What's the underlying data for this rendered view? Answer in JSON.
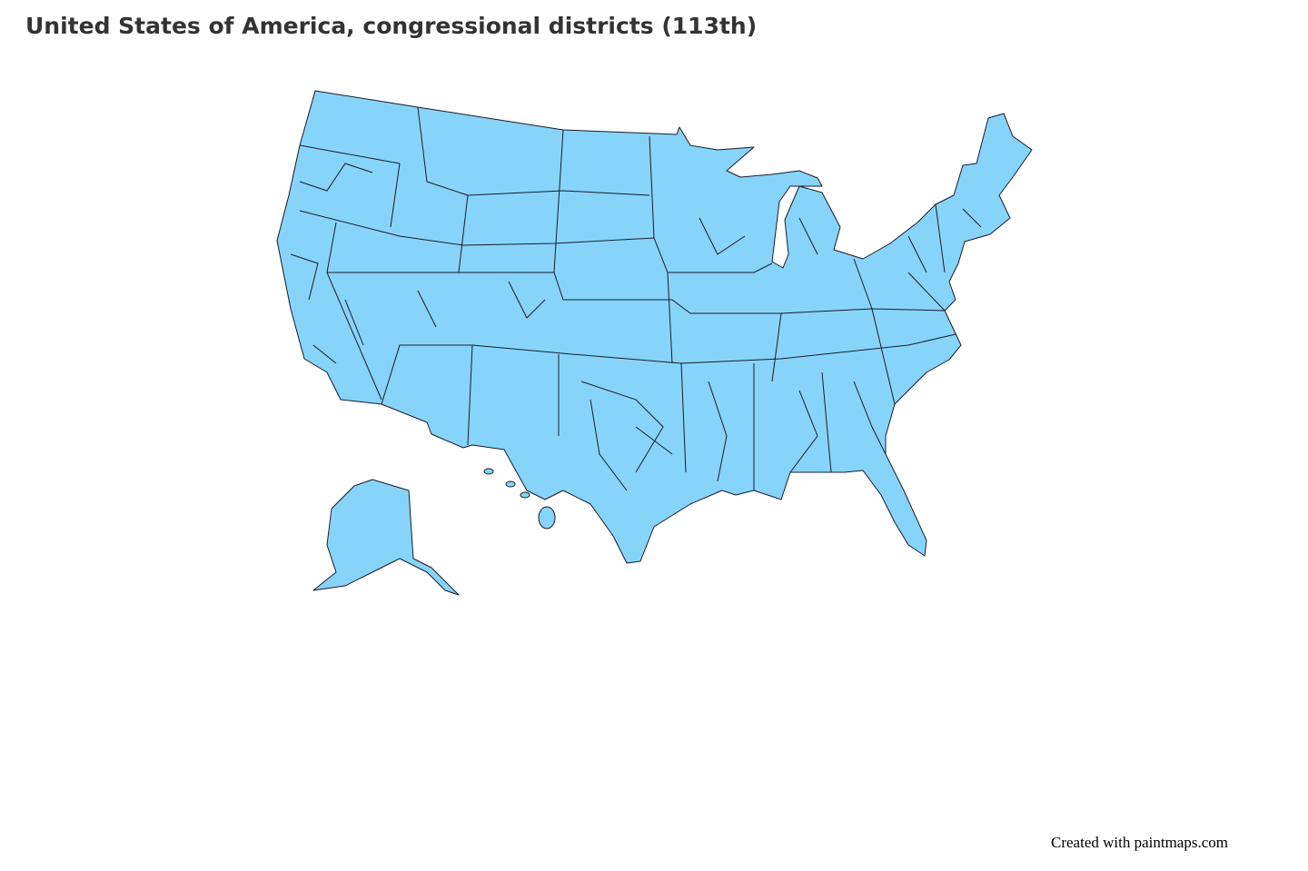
{
  "title": "United States of America, congressional districts (113th)",
  "credit": "Created with paintmaps.com"
}
